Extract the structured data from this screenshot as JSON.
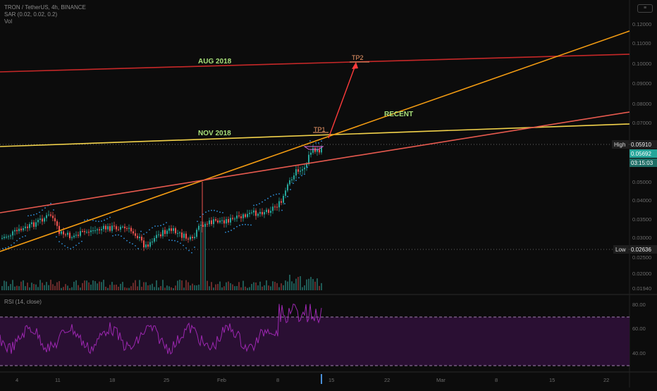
{
  "legend": {
    "symbol": "TRON / TetherUS, 4h, BINANCE",
    "indicator": "SAR (0.02, 0.02, 0.2)",
    "volume": "Vol"
  },
  "rsi_label": "RSI (14, close)",
  "price_axis": {
    "ticks": [
      "0.12000",
      "0.11000",
      "0.10000",
      "0.09000",
      "0.08000",
      "0.07000",
      "0.06000",
      "0.05000",
      "0.04000",
      "0.03500",
      "0.03000",
      "0.02500",
      "0.02000",
      "0.01940"
    ],
    "high_label": "High",
    "high_value": "0.05910",
    "current_value": "0.05692",
    "countdown": "03:15:03",
    "low_label": "Low",
    "low_value": "0.02636"
  },
  "rsi_axis": {
    "ticks": [
      "80.00",
      "60.00",
      "40.00"
    ]
  },
  "time_axis": {
    "labels": [
      "4",
      "11",
      "18",
      "25",
      "Feb",
      "8",
      "15",
      "22",
      "Mar",
      "8",
      "15",
      "22"
    ]
  },
  "annotations": {
    "aug2018": "AUG 2018",
    "nov2018": "NOV 2018",
    "recent": "RECENT",
    "tp1": "TP1",
    "tp2": "TP2"
  },
  "colors": {
    "background": "#0c0c0c",
    "up": "#26a69a",
    "down": "#ef5350",
    "sar": "#2f8fd8",
    "aug_line": "#c62828",
    "nov_line": "#f2d24b",
    "orange_line": "#f39c12",
    "recent_line": "#e85a4f",
    "label_green": "#a8e07a",
    "rsi": "#9c27b0",
    "rsi_band": "#2a0f33"
  },
  "chart_data": {
    "type": "candlestick",
    "title": "TRON / TetherUS, 4h, BINANCE",
    "price_range": [
      0.0194,
      0.12
    ],
    "high": 0.0591,
    "low": 0.02636,
    "last_close": 0.05692,
    "rsi_range": [
      30,
      85
    ],
    "rsi_levels": [
      70,
      30
    ],
    "targets": [
      {
        "name": "TP1",
        "price": 0.0595
      },
      {
        "name": "TP2",
        "price": 0.11
      }
    ],
    "trendlines": [
      "AUG 2018",
      "NOV 2018",
      "RECENT"
    ]
  }
}
